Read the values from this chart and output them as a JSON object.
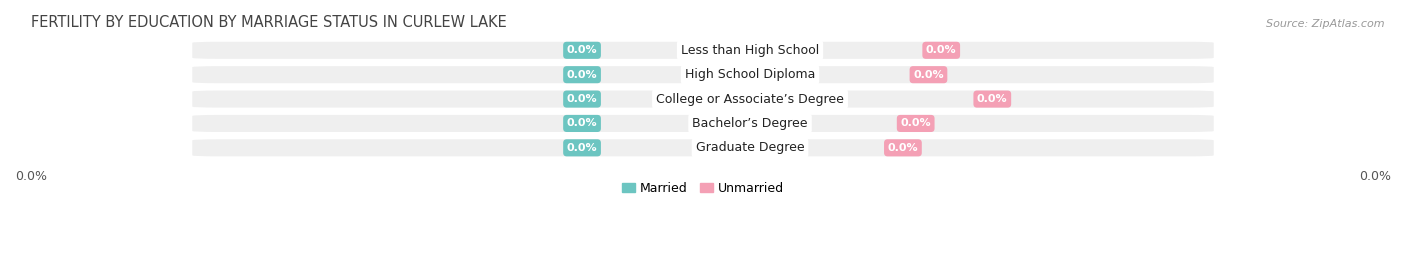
{
  "title": "FERTILITY BY EDUCATION BY MARRIAGE STATUS IN CURLEW LAKE",
  "source": "Source: ZipAtlas.com",
  "categories": [
    "Less than High School",
    "High School Diploma",
    "College or Associate’s Degree",
    "Bachelor’s Degree",
    "Graduate Degree"
  ],
  "married_values": [
    0.0,
    0.0,
    0.0,
    0.0,
    0.0
  ],
  "unmarried_values": [
    0.0,
    0.0,
    0.0,
    0.0,
    0.0
  ],
  "married_color": "#6cc5c1",
  "unmarried_color": "#f4a0b5",
  "row_bg_color": "#efefef",
  "row_bg_color_alt": "#e8e8e8",
  "label_value": "0.0%",
  "x_min": -1.0,
  "x_max": 1.0,
  "title_fontsize": 10.5,
  "source_fontsize": 8,
  "tick_fontsize": 9,
  "legend_fontsize": 9,
  "bar_label_fontsize": 8,
  "category_fontsize": 9
}
